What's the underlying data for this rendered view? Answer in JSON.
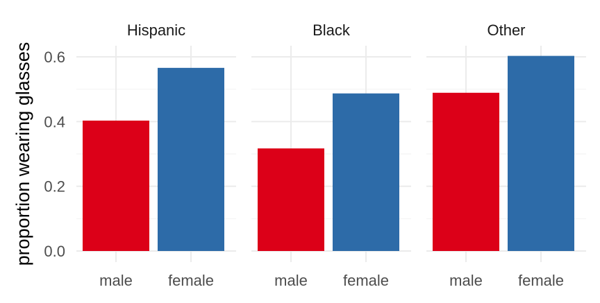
{
  "chart_data": {
    "type": "bar",
    "ylabel": "proportion wearing glasses",
    "xlabel": "",
    "ylim": [
      0,
      0.6
    ],
    "y_ticks": [
      0.0,
      0.2,
      0.4,
      0.6
    ],
    "y_tick_labels": [
      "0.0",
      "0.2",
      "0.4",
      "0.6"
    ],
    "categories": [
      "male",
      "female"
    ],
    "category_colors": {
      "male": "#DC0018",
      "female": "#2D6BA8"
    },
    "grid": true,
    "legend": "none",
    "panels": [
      {
        "title": "Hispanic",
        "values": [
          0.403,
          0.566
        ]
      },
      {
        "title": "Black",
        "values": [
          0.317,
          0.487
        ]
      },
      {
        "title": "Other",
        "values": [
          0.489,
          0.603
        ]
      }
    ]
  }
}
